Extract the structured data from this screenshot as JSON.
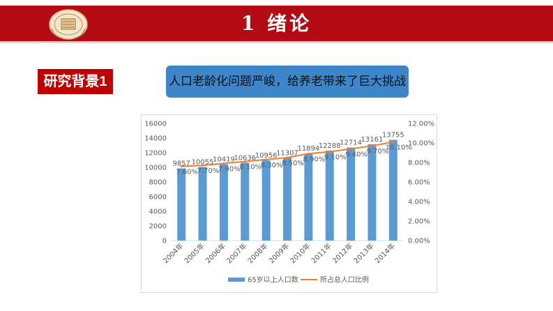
{
  "header": {
    "title": "1 绪论",
    "logo_icon": "university-seal-icon",
    "bg_color": "#b30a13"
  },
  "section_tag": {
    "label": "研究背景1",
    "color": "#c00000"
  },
  "headline": {
    "text": "人口老龄化问题严峻，给养老带来了巨大挑战",
    "color": "#3c86c9"
  },
  "chart_data": {
    "type": "bar",
    "categories": [
      "2004年",
      "2005年",
      "2006年",
      "2007年",
      "2008年",
      "2009年",
      "2010年",
      "2011年",
      "2012年",
      "2013年",
      "2014年"
    ],
    "series": [
      {
        "name": "65岁以上人口数",
        "type": "bar",
        "axis": "left",
        "color": "#5b9bd5",
        "values": [
          9857,
          10055,
          10419,
          10636,
          10956,
          11307,
          11894,
          12288,
          12714,
          13161,
          13755
        ]
      },
      {
        "name": "所占总人口比例",
        "type": "line",
        "axis": "right",
        "color": "#ed7d31",
        "values": [
          7.6,
          7.7,
          7.9,
          8.1,
          8.3,
          8.5,
          8.9,
          9.1,
          9.4,
          9.7,
          10.1
        ],
        "labels": [
          "7.60%",
          "7.70%",
          "7.90%",
          "8.10%",
          "8.30%",
          "8.50%",
          "8.90%",
          "9.10%",
          "9.40%",
          "9.70%",
          "10.10%"
        ]
      }
    ],
    "y_left": {
      "min": 0,
      "max": 16000,
      "ticks": [
        "0",
        "2000",
        "4000",
        "6000",
        "8000",
        "10000",
        "12000",
        "14000",
        "16000"
      ]
    },
    "y_right": {
      "min": 0,
      "max": 12,
      "ticks": [
        "0.00%",
        "2.00%",
        "4.00%",
        "6.00%",
        "8.00%",
        "10.00%",
        "12.00%"
      ]
    },
    "legend_position": "bottom",
    "grid": false
  }
}
